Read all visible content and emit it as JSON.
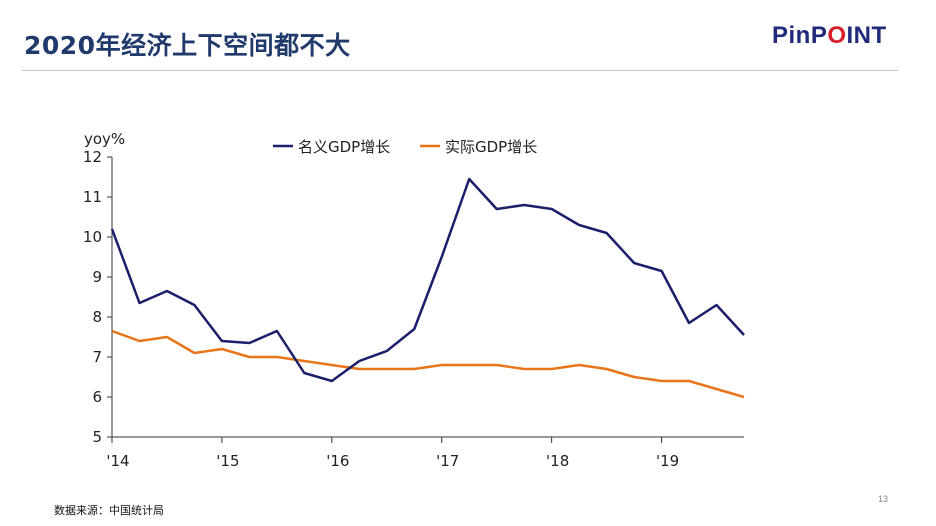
{
  "slide": {
    "title": "2020年经济上下空间都不大",
    "logo_text": "PinPOINT",
    "logo_prefix": "PinP",
    "logo_o": "O",
    "logo_suffix": "INT",
    "logo_colors": {
      "main": "#1f2a7a",
      "accent": "#d81e2a"
    },
    "source": "数据来源：中国统计局",
    "page_number": "13"
  },
  "chart_data": {
    "type": "line",
    "ylabel": "yoy%",
    "ylim": [
      5,
      12
    ],
    "yticks": [
      "5",
      "6",
      "7",
      "8",
      "9",
      "10",
      "11",
      "12"
    ],
    "xticks": [
      {
        "label": "'14",
        "x": 2014.0
      },
      {
        "label": "'15",
        "x": 2015.0
      },
      {
        "label": "'16",
        "x": 2016.0
      },
      {
        "label": "'17",
        "x": 2017.0
      },
      {
        "label": "'18",
        "x": 2018.0
      },
      {
        "label": "'19",
        "x": 2019.0
      }
    ],
    "xlim": [
      2014.0,
      2019.75
    ],
    "legend_position": "top",
    "grid": false,
    "x": [
      2014.0,
      2014.25,
      2014.5,
      2014.75,
      2015.0,
      2015.25,
      2015.5,
      2015.75,
      2016.0,
      2016.25,
      2016.5,
      2016.75,
      2017.0,
      2017.25,
      2017.5,
      2017.75,
      2018.0,
      2018.25,
      2018.5,
      2018.75,
      2019.0,
      2019.25,
      2019.5,
      2019.75
    ],
    "series": [
      {
        "name": "名义GDP增长",
        "color": "#1b1f6b",
        "values": [
          10.2,
          8.35,
          8.65,
          8.3,
          7.4,
          7.35,
          7.65,
          6.6,
          6.4,
          6.9,
          7.15,
          7.7,
          9.5,
          11.45,
          10.7,
          10.8,
          10.7,
          10.3,
          10.1,
          9.35,
          9.15,
          7.85,
          8.3,
          7.55
        ]
      },
      {
        "name": "实际GDP增长",
        "color": "#e8751a",
        "values": [
          7.65,
          7.4,
          7.5,
          7.1,
          7.2,
          7.0,
          7.0,
          6.9,
          6.8,
          6.7,
          6.7,
          6.7,
          6.8,
          6.8,
          6.8,
          6.7,
          6.7,
          6.8,
          6.7,
          6.5,
          6.4,
          6.4,
          6.2,
          6.0
        ]
      }
    ]
  }
}
